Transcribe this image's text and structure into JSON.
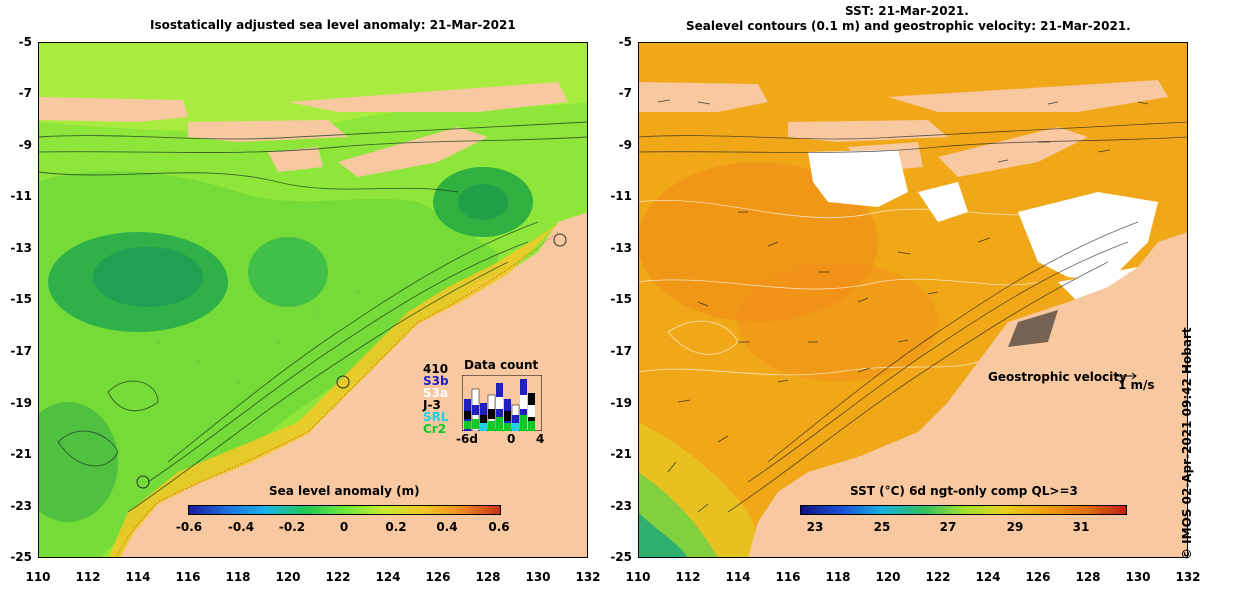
{
  "left_panel": {
    "title": "Isostatically adjusted sea level anomaly: 21-Mar-2021",
    "colorbar": {
      "title": "Sea level anomaly (m)",
      "labels": [
        "-0.6",
        "-0.4",
        "-0.2",
        "0",
        "0.2",
        "0.4",
        "0.6"
      ],
      "colors": [
        "#1a1aa0",
        "#1e6fe0",
        "#1ab4e8",
        "#20c850",
        "#6ee83c",
        "#c8e832",
        "#f0c828",
        "#f08c20",
        "#c83218"
      ]
    },
    "data_count": {
      "title": "Data count",
      "max_label": "410",
      "missions": [
        "S3b",
        "S3a",
        "J-3",
        "SRL",
        "Cr2"
      ],
      "mission_colors": [
        "#2020c0",
        "#ffffff",
        "#000000",
        "#20d0e8",
        "#10c828"
      ],
      "x_labels": [
        "-6d",
        "0",
        "4"
      ]
    }
  },
  "right_panel": {
    "title_line1": "SST: 21-Mar-2021.",
    "title_line2": "Sealevel contours (0.1 m) and geostrophic velocity: 21-Mar-2021.",
    "colorbar": {
      "title": "SST (°C) 6d ngt-only comp QL>=3",
      "labels": [
        "23",
        "25",
        "27",
        "29",
        "31"
      ],
      "colors": [
        "#101080",
        "#1a50d8",
        "#18b0e0",
        "#30c060",
        "#a0e030",
        "#e8d020",
        "#f0a010",
        "#e07010",
        "#c02010"
      ]
    },
    "velocity_legend": {
      "label": "Geostrophic velocity",
      "scale": "1 m/s"
    }
  },
  "y_axis_labels": [
    "-5",
    "-7",
    "-9",
    "-11",
    "-13",
    "-15",
    "-17",
    "-19",
    "-21",
    "-23",
    "-25"
  ],
  "x_axis_labels": [
    "110",
    "112",
    "114",
    "116",
    "118",
    "120",
    "122",
    "124",
    "126",
    "128",
    "130",
    "132"
  ],
  "credit": "© IMOS 02-Apr-2021 09:42 Hobart",
  "colors": {
    "land": "#f8c8a0",
    "sla_background": "#8ee63a",
    "sst_background": "#f0a818",
    "cloud": "#ffffff"
  }
}
